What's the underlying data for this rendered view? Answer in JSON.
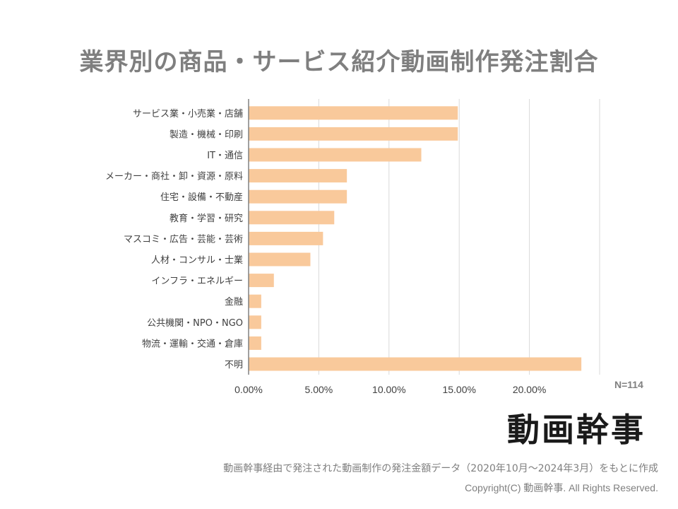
{
  "page": {
    "footnote": "動画幹事経由で発注された動画制作の発注金額データ（2020年10月～2024年3月）をもとに作成",
    "copyright": "Copyright(C) 動画幹事. All Rights Reserved.",
    "logo_text": "動画幹事",
    "sample_size": "N=114"
  },
  "chart_data": {
    "type": "bar",
    "orientation": "horizontal",
    "title": "業界別の商品・サービス紹介動画制作発注割合",
    "xlabel": "",
    "ylabel": "",
    "categories": [
      "サービス業・小売業・店舗",
      "製造・機械・印刷",
      "IT・通信",
      "メーカー・商社・卸・資源・原料",
      "住宅・設備・不動産",
      "教育・学習・研究",
      "マスコミ・広告・芸能・芸術",
      "人材・コンサル・士業",
      "インフラ・エネルギー",
      "金融",
      "公共機関・NPO・NGO",
      "物流・運輸・交通・倉庫",
      "不明"
    ],
    "values": [
      14.9,
      14.9,
      12.3,
      7.0,
      7.0,
      6.1,
      5.3,
      4.4,
      1.8,
      0.9,
      0.9,
      0.9,
      23.7
    ],
    "xlim": [
      0,
      25
    ],
    "xticks": [
      0,
      5,
      10,
      15,
      20
    ],
    "xtick_labels": [
      "0.00%",
      "5.00%",
      "10.00%",
      "15.00%",
      "20.00%"
    ],
    "grid": true,
    "bar_color": "#f9c99b",
    "grid_color": "#d9d9d9",
    "axis_color": "#808080"
  }
}
